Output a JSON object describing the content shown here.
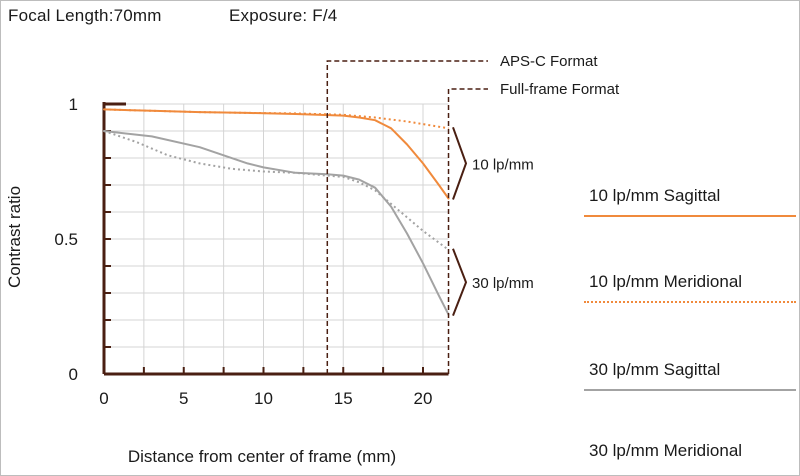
{
  "header": {
    "focal_length": "Focal Length:70mm",
    "exposure": "Exposure: F/4"
  },
  "legend": [
    {
      "label": "10 lp/mm Sagittal"
    },
    {
      "label": "10 lp/mm Meridional"
    },
    {
      "label": "30 lp/mm Sagittal"
    },
    {
      "label": "30 lp/mm Meridional"
    }
  ],
  "colors": {
    "orange": "#f08a3c",
    "gray": "#a3a3a3",
    "axis": "#4a1f12",
    "grid": "#d4d4d4"
  },
  "chart_data": {
    "type": "line",
    "title": "",
    "xlabel": "Distance from center of frame (mm)",
    "ylabel": "Contrast ratio",
    "xlim": [
      0,
      21.6
    ],
    "ylim": [
      0,
      1
    ],
    "x_ticks": [
      0,
      5,
      10,
      15,
      20
    ],
    "y_ticks": [
      {
        "value": 0,
        "label": "0"
      },
      {
        "value": 0.5,
        "label": "0.5"
      },
      {
        "value": 1,
        "label": "1"
      }
    ],
    "grid": true,
    "series": [
      {
        "name": "10 lp/mm Sagittal",
        "color": "#f08a3c",
        "style": "solid",
        "x": [
          0,
          3,
          6,
          9,
          12,
          15,
          16,
          17,
          18,
          19,
          20,
          21,
          21.6
        ],
        "y": [
          0.98,
          0.975,
          0.97,
          0.967,
          0.963,
          0.957,
          0.95,
          0.94,
          0.91,
          0.85,
          0.78,
          0.7,
          0.65
        ]
      },
      {
        "name": "10 lp/mm Meridional",
        "color": "#f08a3c",
        "style": "dotted",
        "x": [
          0,
          3,
          6,
          9,
          12,
          15,
          17,
          19,
          21.6
        ],
        "y": [
          0.98,
          0.975,
          0.97,
          0.967,
          0.965,
          0.96,
          0.95,
          0.935,
          0.91
        ]
      },
      {
        "name": "30 lp/mm Sagittal",
        "color": "#a3a3a3",
        "style": "solid",
        "x": [
          0,
          3,
          6,
          9,
          10,
          12,
          14,
          15,
          16,
          17,
          18,
          19,
          20,
          21,
          21.6
        ],
        "y": [
          0.9,
          0.88,
          0.84,
          0.78,
          0.765,
          0.745,
          0.74,
          0.735,
          0.72,
          0.69,
          0.62,
          0.52,
          0.41,
          0.29,
          0.22
        ]
      },
      {
        "name": "30 lp/mm Meridional",
        "color": "#a3a3a3",
        "style": "dotted",
        "x": [
          0,
          2,
          4,
          6,
          8,
          10,
          12,
          14,
          15,
          16,
          17,
          18,
          19,
          20,
          21.6
        ],
        "y": [
          0.9,
          0.86,
          0.81,
          0.78,
          0.76,
          0.75,
          0.745,
          0.735,
          0.73,
          0.71,
          0.68,
          0.63,
          0.58,
          0.53,
          0.46
        ]
      }
    ],
    "annotations": [
      {
        "text": "APS-C Format",
        "x_boundary": 14
      },
      {
        "text": "Full-frame Format",
        "x_boundary": 21.6
      },
      {
        "text": "10 lp/mm",
        "y_range": [
          0.65,
          0.91
        ]
      },
      {
        "text": "30 lp/mm",
        "y_range": [
          0.22,
          0.46
        ]
      }
    ]
  }
}
